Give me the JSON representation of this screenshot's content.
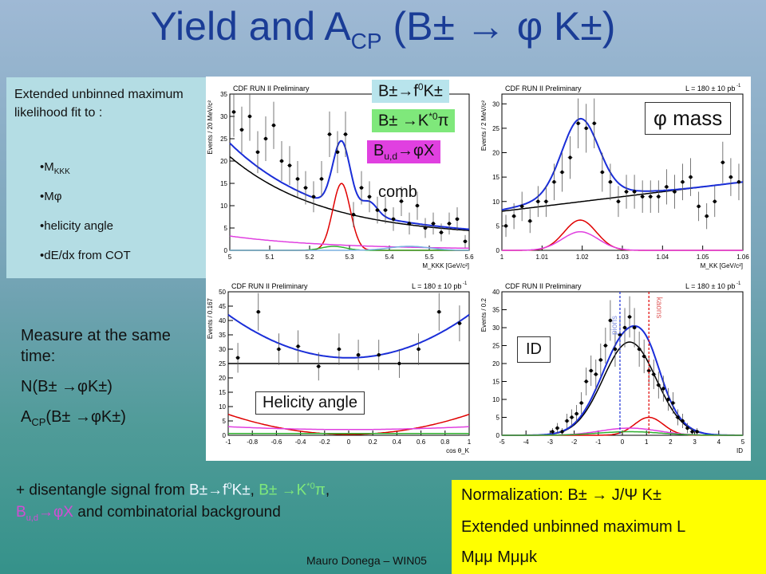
{
  "title": {
    "pre": "Yield and A",
    "sub": "CP",
    "post": " (B± → φ K±)"
  },
  "fit_box": {
    "intro": "Extended unbinned maximum likelihood fit to :",
    "items": [
      {
        "main": "M",
        "sub": "KKK"
      },
      {
        "main": "Mφ",
        "sub": ""
      },
      {
        "main": "helicity angle",
        "sub": ""
      },
      {
        "main": "dE/dx from COT",
        "sub": ""
      }
    ]
  },
  "measure": {
    "heading": "Measure at the same time:",
    "n_label": "N(B± →φK±)",
    "acp_pre": "A",
    "acp_sub": "CP",
    "acp_post": "(B± →φK±)"
  },
  "legend_tags": {
    "f0k": {
      "text": "B±→f",
      "sup": "0",
      "tail": "K±",
      "color": "#b8e4ec"
    },
    "kstar": {
      "text": "B± →K",
      "sup": "*0",
      "tail": "π",
      "color": "#7fe87b"
    },
    "budphix": {
      "text": "B",
      "sub": "u,d",
      "tail": "→φX",
      "color": "#e040e0"
    },
    "comb": {
      "text": "comb"
    }
  },
  "panel_labels": {
    "phi_mass": "φ mass",
    "helicity": "Helicity angle",
    "id": "ID",
    "pions": "pions",
    "kaons": "kaons"
  },
  "plot_texts": {
    "cdf": "CDF RUN II Preliminary",
    "lumi": "L = 180 ± 10 pb",
    "lumi_sup": "-1",
    "mkkk_ylabel": "Events / 20 MeV/c²",
    "mkkk_xlabel": "M_KKK [GeV/c²]",
    "mkk_ylabel": "Events / 2 MeV/c²",
    "mkk_xlabel": "M_KK [GeV/c²]",
    "hel_ylabel": "Events / 0.167",
    "hel_xlabel": "cos θ_K",
    "id_ylabel": "Events / 0.2",
    "id_xlabel": "ID"
  },
  "bottom_note": {
    "pre": "+ disentangle signal from ",
    "f0k": "B±→f",
    "f0k_sup": "0",
    "f0k_tail": "K±",
    "sep1": ", ",
    "kstar": "B± →K",
    "kstar_sup": "*0",
    "kstar_tail": "π",
    "sep2": ",",
    "bud": "B",
    "bud_sub": "u,d",
    "bud_tail": "→φX",
    "post": " and combinatorial background"
  },
  "norm_box": {
    "line1": "Normalization: B± → J/Ψ K±",
    "line2": "Extended unbinned maximum L",
    "line3": "Mμμ Mμμk"
  },
  "footer": "Mauro Donega – WIN05",
  "chart_data": [
    {
      "type": "scatter",
      "name": "MKKK",
      "xlabel": "M_KKK [GeV/c²]",
      "ylabel": "Events / 20 MeV/c²",
      "xlim": [
        5.0,
        5.6
      ],
      "ylim": [
        0,
        35
      ],
      "xticks": [
        5,
        5.1,
        5.2,
        5.3,
        5.4,
        5.5,
        5.6
      ],
      "yticks": [
        0,
        5,
        10,
        15,
        20,
        25,
        30,
        35
      ],
      "x": [
        5.01,
        5.03,
        5.05,
        5.07,
        5.09,
        5.11,
        5.13,
        5.15,
        5.17,
        5.19,
        5.21,
        5.23,
        5.25,
        5.27,
        5.29,
        5.31,
        5.33,
        5.35,
        5.37,
        5.39,
        5.41,
        5.43,
        5.45,
        5.47,
        5.49,
        5.51,
        5.53,
        5.55,
        5.57,
        5.59
      ],
      "y": [
        31,
        27,
        30,
        22,
        25,
        28,
        20,
        19,
        16,
        14,
        12,
        16,
        26,
        22,
        26,
        8,
        14,
        12,
        9,
        9,
        7,
        11,
        6,
        10,
        5,
        6,
        4,
        6,
        7,
        2
      ]
    },
    {
      "type": "scatter",
      "name": "MKK",
      "title": "",
      "xlabel": "M_KK [GeV/c²]",
      "ylabel": "Events / 2 MeV/c²",
      "xlim": [
        1.0,
        1.06
      ],
      "ylim": [
        0,
        32
      ],
      "xticks": [
        1,
        1.01,
        1.02,
        1.03,
        1.04,
        1.05,
        1.06
      ],
      "yticks": [
        0,
        5,
        10,
        15,
        20,
        25,
        30
      ],
      "x": [
        1.001,
        1.003,
        1.005,
        1.007,
        1.009,
        1.011,
        1.013,
        1.015,
        1.017,
        1.019,
        1.021,
        1.023,
        1.025,
        1.027,
        1.029,
        1.031,
        1.033,
        1.035,
        1.037,
        1.039,
        1.041,
        1.043,
        1.045,
        1.047,
        1.049,
        1.051,
        1.053,
        1.055,
        1.057,
        1.059
      ],
      "y": [
        5,
        7,
        9,
        6,
        10,
        10,
        14,
        16,
        19,
        26,
        25,
        26,
        16,
        14,
        10,
        12,
        12,
        11,
        11,
        11,
        13,
        12,
        14,
        15,
        9,
        7,
        10,
        18,
        15,
        14
      ]
    },
    {
      "type": "scatter",
      "name": "Helicity",
      "xlabel": "cos θ_K",
      "ylabel": "Events / 0.167",
      "xlim": [
        -1,
        1
      ],
      "ylim": [
        0,
        50
      ],
      "xticks": [
        -1,
        -0.8,
        -0.6,
        -0.4,
        -0.2,
        0,
        0.2,
        0.4,
        0.6,
        0.8,
        1
      ],
      "yticks": [
        0,
        5,
        10,
        15,
        20,
        25,
        30,
        35,
        40,
        45,
        50
      ],
      "x": [
        -0.92,
        -0.75,
        -0.58,
        -0.42,
        -0.25,
        -0.08,
        0.08,
        0.25,
        0.42,
        0.58,
        0.75,
        0.92
      ],
      "y": [
        27,
        43,
        30,
        31,
        24,
        30,
        28,
        28,
        25,
        30,
        43,
        39
      ]
    },
    {
      "type": "scatter",
      "name": "ID",
      "xlabel": "ID",
      "ylabel": "Events / 0.2",
      "xlim": [
        -5,
        5
      ],
      "ylim": [
        0,
        40
      ],
      "xticks": [
        -5,
        -4,
        -3,
        -2,
        -1,
        0,
        1,
        2,
        3,
        4,
        5
      ],
      "yticks": [
        0,
        5,
        10,
        15,
        20,
        25,
        30,
        35,
        40
      ],
      "x": [
        -2.9,
        -2.7,
        -2.5,
        -2.3,
        -2.1,
        -1.9,
        -1.7,
        -1.5,
        -1.3,
        -1.1,
        -0.9,
        -0.7,
        -0.5,
        -0.3,
        -0.1,
        0.1,
        0.3,
        0.5,
        0.7,
        0.9,
        1.1,
        1.3,
        1.5,
        1.7,
        1.9,
        2.1,
        2.3,
        2.5,
        2.7,
        2.9,
        3.1
      ],
      "y": [
        1,
        2,
        1,
        4,
        5,
        6,
        9,
        15,
        18,
        17,
        21,
        25,
        32,
        24,
        28,
        30,
        33,
        30,
        24,
        22,
        18,
        17,
        14,
        13,
        10,
        9,
        5,
        4,
        2,
        1,
        1
      ]
    }
  ]
}
